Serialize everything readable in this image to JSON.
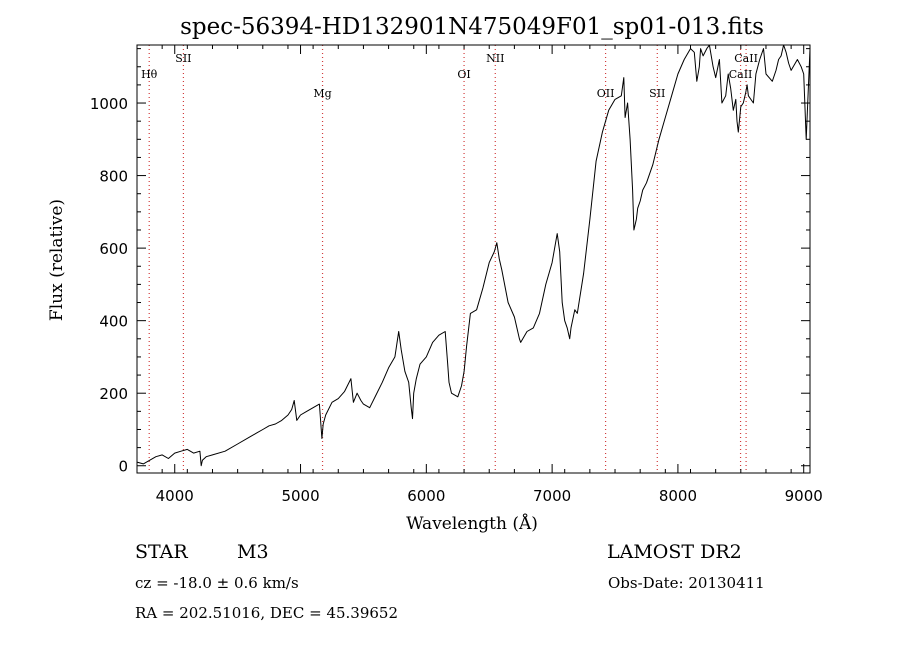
{
  "chart_data": {
    "type": "line",
    "title": "spec-56394-HD132901N475049F01_sp01-013.fits",
    "xlabel": "Wavelength (Å)",
    "ylabel": "Flux (relative)",
    "xlim": [
      3700,
      9050
    ],
    "ylim": [
      -20,
      1160
    ],
    "xticks": [
      4000,
      5000,
      6000,
      7000,
      8000,
      9000
    ],
    "yticks": [
      0,
      200,
      400,
      600,
      800,
      1000
    ],
    "grid": false,
    "legend": "none",
    "series": [
      {
        "x": [
          3700,
          3750,
          3800,
          3850,
          3900,
          3950,
          4000,
          4050,
          4100,
          4150,
          4200,
          4210,
          4220,
          4250,
          4300,
          4400,
          4500,
          4600,
          4650,
          4700,
          4750,
          4800,
          4850,
          4900,
          4930,
          4950,
          4970,
          5000,
          5050,
          5100,
          5150,
          5170,
          5180,
          5200,
          5250,
          5300,
          5350,
          5400,
          5420,
          5450,
          5480,
          5500,
          5550,
          5600,
          5650,
          5700,
          5750,
          5780,
          5800,
          5830,
          5860,
          5880,
          5890,
          5900,
          5920,
          5950,
          6000,
          6050,
          6100,
          6150,
          6170,
          6180,
          6200,
          6250,
          6280,
          6300,
          6320,
          6350,
          6400,
          6450,
          6500,
          6540,
          6560,
          6580,
          6600,
          6650,
          6700,
          6720,
          6740,
          6750,
          6800,
          6850,
          6900,
          6950,
          7000,
          7040,
          7060,
          7080,
          7100,
          7120,
          7140,
          7150,
          7180,
          7200,
          7250,
          7300,
          7350,
          7400,
          7450,
          7500,
          7550,
          7570,
          7580,
          7600,
          7620,
          7640,
          7650,
          7670,
          7680,
          7700,
          7720,
          7750,
          7800,
          7850,
          7900,
          7950,
          8000,
          8050,
          8100,
          8130,
          8150,
          8170,
          8180,
          8200,
          8230,
          8250,
          8280,
          8300,
          8330,
          8350,
          8380,
          8400,
          8420,
          8440,
          8460,
          8470,
          8480,
          8500,
          8520,
          8540,
          8550,
          8560,
          8600,
          8620,
          8650,
          8680,
          8700,
          8750,
          8780,
          8800,
          8820,
          8840,
          8860,
          8880,
          8900,
          8950,
          8980,
          9000,
          9020,
          9050
        ],
        "values": [
          10,
          5,
          15,
          25,
          30,
          20,
          35,
          40,
          45,
          35,
          40,
          0,
          15,
          25,
          30,
          40,
          60,
          80,
          90,
          100,
          110,
          115,
          125,
          140,
          155,
          180,
          125,
          140,
          150,
          160,
          170,
          75,
          115,
          140,
          175,
          185,
          205,
          240,
          175,
          200,
          180,
          170,
          160,
          195,
          230,
          270,
          300,
          370,
          320,
          260,
          230,
          160,
          130,
          200,
          240,
          280,
          300,
          340,
          360,
          370,
          280,
          230,
          200,
          190,
          220,
          260,
          330,
          420,
          430,
          490,
          560,
          590,
          615,
          570,
          540,
          450,
          410,
          380,
          350,
          340,
          370,
          380,
          420,
          500,
          560,
          640,
          590,
          450,
          400,
          380,
          350,
          380,
          430,
          420,
          530,
          680,
          840,
          920,
          980,
          1010,
          1020,
          1070,
          960,
          1000,
          900,
          760,
          650,
          680,
          710,
          730,
          760,
          780,
          830,
          900,
          960,
          1020,
          1080,
          1120,
          1150,
          1140,
          1060,
          1100,
          1150,
          1130,
          1150,
          1160,
          1100,
          1070,
          1120,
          1000,
          1020,
          1080,
          1040,
          980,
          1010,
          950,
          920,
          990,
          1000,
          1030,
          1050,
          1020,
          1000,
          1080,
          1120,
          1150,
          1080,
          1060,
          1090,
          1120,
          1130,
          1160,
          1140,
          1110,
          1090,
          1120,
          1100,
          1080,
          900,
          1150
        ]
      }
    ],
    "line_markers": [
      {
        "label": "Hθ",
        "x": 3797,
        "row": "upper"
      },
      {
        "label": "SII",
        "x": 4069,
        "row": "top"
      },
      {
        "label": "Mg",
        "x": 5175,
        "row": "lower"
      },
      {
        "label": "OI",
        "x": 6300,
        "row": "upper"
      },
      {
        "label": "NII",
        "x": 6548,
        "row": "top"
      },
      {
        "label": "OII",
        "x": 7425,
        "row": "lower"
      },
      {
        "label": "SII",
        "x": 7836,
        "row": "lower"
      },
      {
        "label": "CaII",
        "x": 8542,
        "row": "top"
      },
      {
        "label": "CaII",
        "x": 8498,
        "row": "upper"
      }
    ]
  },
  "info": {
    "object_type": "STAR",
    "subclass": "M3",
    "survey": "LAMOST DR2",
    "redshift": "cz = -18.0 ± 0.6 km/s",
    "obs_date": "Obs-Date: 20130411",
    "coords": "RA = 202.51016, DEC =  45.39652"
  },
  "colors": {
    "line": "#000000",
    "marker": "#d23c3c",
    "background": "#ffffff"
  }
}
